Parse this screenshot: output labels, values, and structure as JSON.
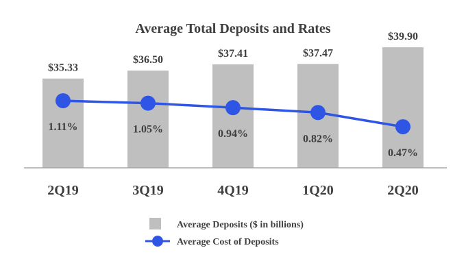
{
  "chart_data": {
    "type": "bar",
    "title": "Average Total Deposits and Rates",
    "categories": [
      "2Q19",
      "3Q19",
      "4Q19",
      "1Q20",
      "2Q20"
    ],
    "series": [
      {
        "name": "Average Deposits ($ in billions)",
        "type": "bar",
        "values": [
          35.33,
          36.5,
          37.41,
          37.47,
          39.9
        ],
        "labels": [
          "$35.33",
          "$36.50",
          "$37.41",
          "$37.47",
          "$39.90"
        ],
        "color": "#bfbfbf"
      },
      {
        "name": "Average Cost of Deposits",
        "type": "line",
        "values": [
          1.11,
          1.05,
          0.94,
          0.82,
          0.47
        ],
        "labels": [
          "1.11%",
          "1.05%",
          "0.94%",
          "0.82%",
          "0.47%"
        ],
        "color": "#2f55e4"
      }
    ],
    "grid": false,
    "legend": "bottom"
  }
}
